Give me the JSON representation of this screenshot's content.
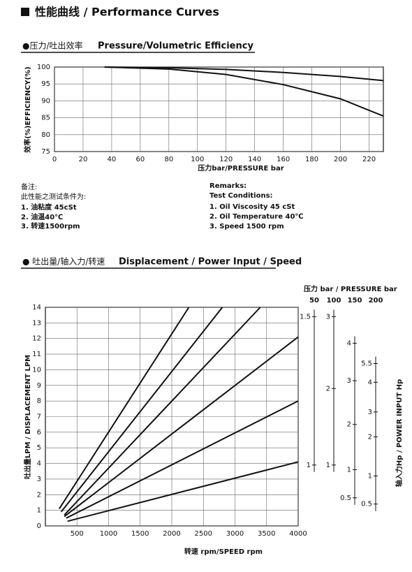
{
  "header": {
    "title": "性能曲线 / Performance Curves"
  },
  "efficiency": {
    "title_cn": "●压力/吐出效率",
    "title_en": "Pressure/Volumetric Efficiency",
    "chart": {
      "type": "line",
      "y_label": "效率(%)EFFICIENCY(%)",
      "x_label": "压力bar/PRESSURE bar",
      "xlim": [
        0,
        230
      ],
      "ylim": [
        75,
        100
      ],
      "xticks": [
        0,
        20,
        40,
        60,
        80,
        100,
        120,
        140,
        160,
        180,
        200,
        220
      ],
      "yticks": [
        75,
        80,
        85,
        90,
        95,
        100
      ],
      "grid": true,
      "series": [
        {
          "color": "#111111",
          "x": [
            35,
            80,
            120,
            160,
            200,
            230
          ],
          "values": [
            100,
            99.8,
            99.3,
            98.4,
            97.2,
            96
          ]
        },
        {
          "color": "#111111",
          "x": [
            35,
            80,
            120,
            160,
            200,
            230
          ],
          "values": [
            100,
            99.4,
            97.8,
            94.8,
            90.6,
            85.5
          ]
        }
      ]
    },
    "notes_cn": {
      "heading": "备注:",
      "intro": "此性能之测试条件为:",
      "items": [
        "1.  油粘度 45cSt",
        "2.  油温40℃",
        "3.  转速1500rpm"
      ]
    },
    "notes_en": {
      "heading": "Remarks:",
      "intro": "Test Conditions:",
      "items": [
        "1.  Oil Viscosity 45 cSt",
        "2.  Oil Temperature 40℃",
        "3.  Speed 1500 rpm"
      ]
    }
  },
  "displacement": {
    "title_cn": "● 吐出量/轴入力/转速",
    "title_en": "Displacement / Power Input / Speed",
    "chart": {
      "type": "line",
      "y_label": "吐出量LPM / DISPLACEMENT LPM",
      "x_label": "转速 rpm/SPEED rpm",
      "xlim": [
        0,
        4000
      ],
      "ylim": [
        0,
        14
      ],
      "xticks": [
        500,
        1000,
        1500,
        2000,
        2500,
        3000,
        3500,
        4000
      ],
      "yticks": [
        0,
        1,
        2,
        3,
        4,
        5,
        6,
        7,
        8,
        9,
        10,
        11,
        12,
        13,
        14
      ],
      "grid": true,
      "series": [
        {
          "color": "#111111",
          "x": [
            220,
            2270
          ],
          "values": [
            1.1,
            14
          ]
        },
        {
          "color": "#111111",
          "x": [
            250,
            2800
          ],
          "values": [
            0.9,
            14
          ]
        },
        {
          "color": "#111111",
          "x": [
            300,
            3400
          ],
          "values": [
            0.7,
            14
          ]
        },
        {
          "color": "#111111",
          "x": [
            300,
            4000
          ],
          "values": [
            0.6,
            12.1
          ]
        },
        {
          "color": "#111111",
          "x": [
            330,
            4000
          ],
          "values": [
            0.5,
            8
          ]
        },
        {
          "color": "#111111",
          "x": [
            350,
            4000
          ],
          "values": [
            0.3,
            4.1
          ]
        }
      ]
    },
    "power_panel": {
      "pressure_label": "压力 bar / PRESSURE bar",
      "power_label": "轴入力Hp / POWER INPUT Hp",
      "scales": [
        {
          "pressure": 50,
          "ticks": [
            {
              "value": 1.5,
              "lpm": 13.4
            },
            {
              "value": 1,
              "lpm": 3.9
            }
          ]
        },
        {
          "pressure": 100,
          "ticks": [
            {
              "value": 3,
              "lpm": 13.4
            },
            {
              "value": 2,
              "lpm": 8.8
            },
            {
              "value": 1,
              "lpm": 3.9
            }
          ]
        },
        {
          "pressure": 150,
          "ticks": [
            {
              "value": 4,
              "lpm": 11.7
            },
            {
              "value": 3,
              "lpm": 9.3
            },
            {
              "value": 2,
              "lpm": 6.5
            },
            {
              "value": 1,
              "lpm": 3.6
            },
            {
              "value": 0.5,
              "lpm": 1.8
            }
          ]
        },
        {
          "pressure": 200,
          "ticks": [
            {
              "value": 5.5,
              "lpm": 10.4
            },
            {
              "value": 4,
              "lpm": 9.2
            },
            {
              "value": 3,
              "lpm": 7.3
            },
            {
              "value": 2,
              "lpm": 5.7
            },
            {
              "value": 1,
              "lpm": 3.2
            },
            {
              "value": 0.5,
              "lpm": 1.4
            }
          ]
        }
      ]
    }
  }
}
